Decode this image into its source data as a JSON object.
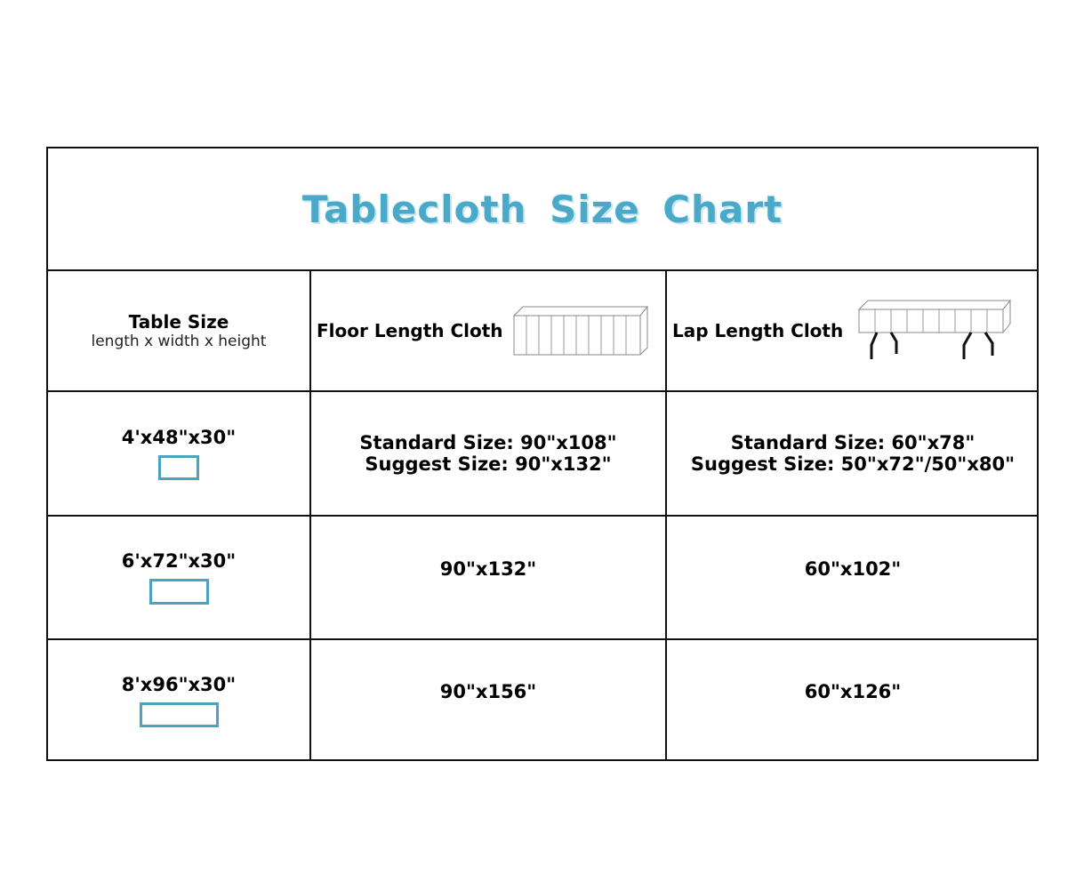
{
  "title": "Tablecloth Size Chart",
  "header": {
    "col1_title": "Table Size",
    "col1_subtitle": "length x width x height",
    "col2": "Floor Length Cloth",
    "col3": "Lap Length Cloth",
    "col2_icon": "floor-length-table-icon",
    "col3_icon": "lap-length-table-icon"
  },
  "rows": [
    {
      "size": "4'x48\"x30\"",
      "floor": "Standard Size: 90\"x108\"",
      "floor2": "Suggest Size: 90\"x132\"",
      "lap": "Standard Size: 60\"x78\"",
      "lap2": "Suggest Size: 50\"x72\"/50\"x80\""
    },
    {
      "size": "6'x72\"x30\"",
      "floor": "90\"x132\"",
      "lap": "60\"x102\""
    },
    {
      "size": "8'x96\"x30\"",
      "floor": "90\"x156\"",
      "lap": "60\"x126\""
    }
  ],
  "accent": "#4aa8c8"
}
